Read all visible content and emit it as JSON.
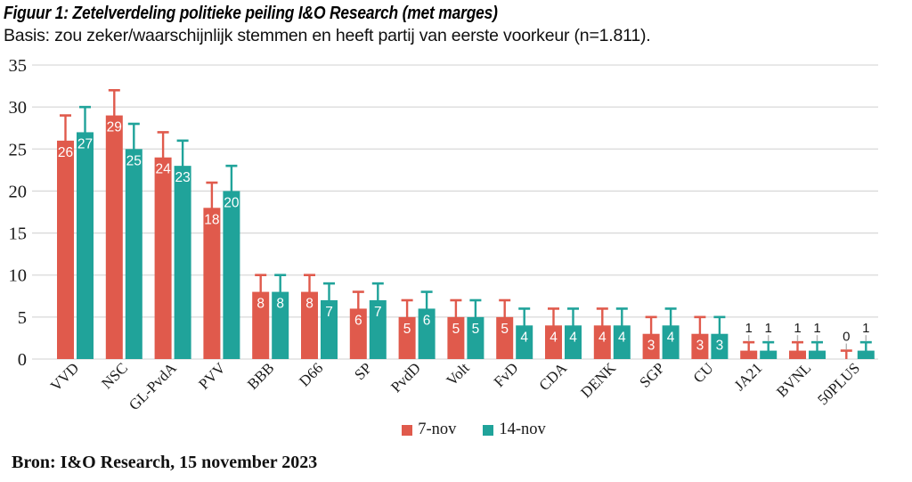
{
  "title": "Figuur 1: Zetelverdeling politieke peiling I&O Research (met marges)",
  "subtitle": "Basis: zou zeker/waarschijnlijk stemmen en heeft partij van eerste voorkeur (n=1.811).",
  "source": "Bron: I&O Research, 15 november 2023",
  "chart_data": {
    "type": "bar",
    "title": "Zetelverdeling politieke peiling I&O Research (met marges)",
    "categories": [
      "VVD",
      "NSC",
      "GL-PvdA",
      "PVV",
      "BBB",
      "D66",
      "SP",
      "PvdD",
      "Volt",
      "FvD",
      "CDA",
      "DENK",
      "SGP",
      "CU",
      "JA21",
      "BVNL",
      "50PLUS"
    ],
    "series": [
      {
        "name": "7-nov",
        "color": "#e05a4c",
        "values": [
          26,
          29,
          24,
          18,
          8,
          8,
          6,
          5,
          5,
          5,
          4,
          4,
          3,
          3,
          1,
          1,
          0
        ],
        "error_upper": [
          29,
          32,
          27,
          21,
          10,
          10,
          8,
          7,
          7,
          7,
          6,
          6,
          5,
          5,
          2,
          2,
          1
        ]
      },
      {
        "name": "14-nov",
        "color": "#20a39a",
        "values": [
          27,
          25,
          23,
          20,
          8,
          7,
          7,
          6,
          5,
          4,
          4,
          4,
          4,
          3,
          1,
          1,
          1
        ],
        "error_upper": [
          30,
          28,
          26,
          23,
          10,
          9,
          9,
          8,
          7,
          6,
          6,
          6,
          6,
          5,
          2,
          2,
          2
        ]
      }
    ],
    "ylim": [
      0,
      35
    ],
    "yticks": [
      0,
      5,
      10,
      15,
      20,
      25,
      30,
      35
    ],
    "xlabel": "",
    "ylabel": "",
    "grid": true,
    "grid_color": "#d9d9d9",
    "legend_position": "bottom-center",
    "bar_label_color_inside": "#ffffff",
    "bar_label_color_outside": "#1a1a1a",
    "leader_line_color": "#b3b3b3",
    "axis_text_color": "#1a1a1a"
  }
}
